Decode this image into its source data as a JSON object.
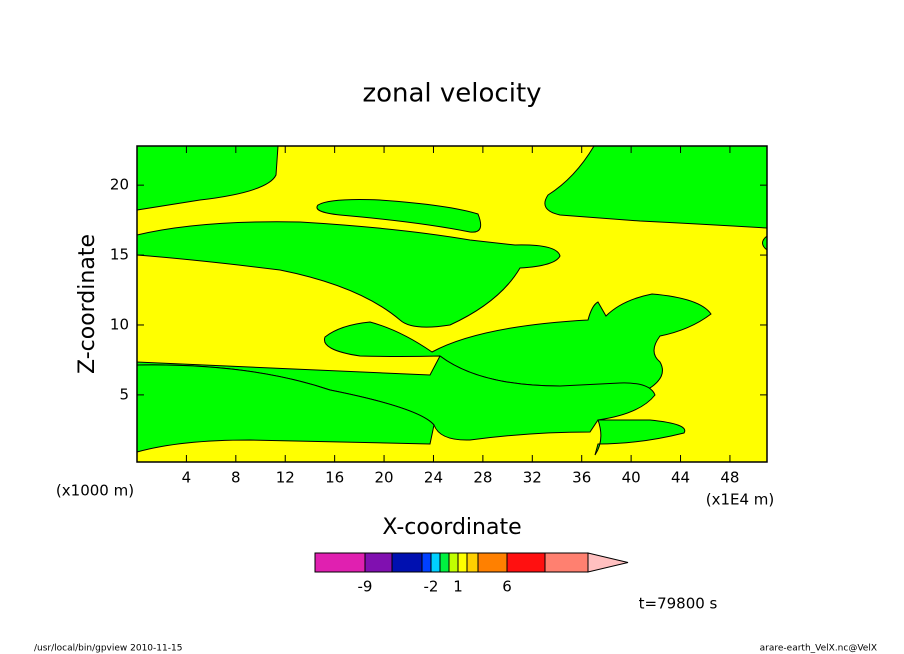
{
  "chart_data": {
    "type": "contour",
    "title": "zonal velocity",
    "x_label": "X-coordinate",
    "y_label": "Z-coordinate",
    "x_unit_note": "(x1E4 m)",
    "y_unit_note": "(x1000 m)",
    "time_note": "t=79800 s",
    "footer_left": "/usr/local/bin/gpview  2010-11-15",
    "footer_right": "arare-earth_VelX.nc@VelX",
    "xlim": [
      0,
      51
    ],
    "xticks": [
      4,
      8,
      12,
      16,
      20,
      24,
      28,
      32,
      36,
      40,
      44,
      48
    ],
    "ylim": [
      0.2,
      22.8
    ],
    "yticks": [
      5,
      10,
      15,
      20
    ],
    "colorbar": {
      "levels": [
        -9,
        -6,
        -3,
        -2,
        -1,
        0,
        1,
        2,
        3,
        6,
        9,
        12
      ],
      "colors": [
        "#e020b0",
        "#8010b0",
        "#0010b0",
        "#0040ff",
        "#00d0ff",
        "#00f040",
        "#c0ff00",
        "#ffff00",
        "#ffd000",
        "#ff8000",
        "#ff1010",
        "#ff8070",
        "#ffc0c0"
      ],
      "ticks": [
        -9,
        -2,
        1,
        6
      ]
    },
    "region_colors": {
      "background": "#ffff00",
      "regions": "#00ff00"
    }
  }
}
